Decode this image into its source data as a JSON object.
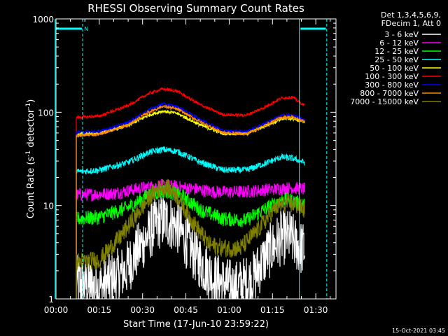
{
  "chart_data": {
    "type": "line",
    "title": "RHESSI Observing Summary Count Rates",
    "xlabel": "Start Time (17-Jun-10 23:59:22)",
    "ylabel_parts": [
      "Count Rate (s",
      "-1",
      " detector",
      "-1",
      ")"
    ],
    "yscale": "log",
    "ylim": [
      1,
      1000
    ],
    "xlim_min": [
      0,
      97
    ],
    "y_ticks": [
      {
        "v": 1,
        "label": "1"
      },
      {
        "v": 10,
        "label": "10"
      },
      {
        "v": 100,
        "label": "100"
      },
      {
        "v": 1000,
        "label": "1000"
      }
    ],
    "x_ticks": [
      {
        "v": 0,
        "label": "00:00"
      },
      {
        "v": 15,
        "label": "00:15"
      },
      {
        "v": 30,
        "label": "00:30"
      },
      {
        "v": 45,
        "label": "00:45"
      },
      {
        "v": 60,
        "label": "01:00"
      },
      {
        "v": 75,
        "label": "01:15"
      },
      {
        "v": 90,
        "label": "01:30"
      }
    ],
    "x_minor_step_min": 5,
    "legend_header": [
      "Det 1,3,4,5,6,9,",
      "FDecim 1, Att 0"
    ],
    "legend_position": "top-right, outside plot",
    "time_range_min": [
      7,
      86
    ],
    "series": [
      {
        "name": "3 - 6 keV",
        "color": "#ffffff",
        "profile": [
          [
            7,
            1.5
          ],
          [
            15,
            1.3
          ],
          [
            24,
            2
          ],
          [
            30,
            4
          ],
          [
            35,
            6.5
          ],
          [
            38,
            7
          ],
          [
            42,
            6
          ],
          [
            48,
            3
          ],
          [
            55,
            1.6
          ],
          [
            62,
            1.3
          ],
          [
            68,
            1.6
          ],
          [
            73,
            3
          ],
          [
            78,
            4.5
          ],
          [
            81,
            4.6
          ],
          [
            84,
            3.6
          ],
          [
            86,
            3.4
          ]
        ],
        "noise": 0.3
      },
      {
        "name": "6 - 12 keV",
        "color": "#ff00ff",
        "profile": [
          [
            7,
            13
          ],
          [
            20,
            13.5
          ],
          [
            30,
            15.5
          ],
          [
            37,
            16.5
          ],
          [
            45,
            15.5
          ],
          [
            55,
            14
          ],
          [
            65,
            14
          ],
          [
            75,
            15
          ],
          [
            82,
            15.5
          ],
          [
            86,
            15
          ]
        ],
        "noise": 0.07
      },
      {
        "name": "12 - 25 keV",
        "color": "#00ff00",
        "profile": [
          [
            7,
            7.2
          ],
          [
            15,
            7.5
          ],
          [
            25,
            9.5
          ],
          [
            32,
            13
          ],
          [
            38,
            14.5
          ],
          [
            44,
            12.5
          ],
          [
            50,
            9
          ],
          [
            58,
            7.2
          ],
          [
            66,
            7
          ],
          [
            72,
            9
          ],
          [
            78,
            11.5
          ],
          [
            81,
            11.5
          ],
          [
            86,
            10
          ]
        ],
        "noise": 0.08
      },
      {
        "name": "25 - 50 keV",
        "color": "#00ffff",
        "profile": [
          [
            7,
            23
          ],
          [
            15,
            24
          ],
          [
            25,
            29
          ],
          [
            32,
            37
          ],
          [
            37,
            40
          ],
          [
            42,
            38
          ],
          [
            50,
            29
          ],
          [
            58,
            24
          ],
          [
            66,
            24
          ],
          [
            72,
            28
          ],
          [
            78,
            33
          ],
          [
            82,
            32
          ],
          [
            86,
            29
          ]
        ],
        "noise": 0.035
      },
      {
        "name": "50 - 100 keV",
        "color": "#ffff00",
        "profile": [
          [
            7,
            58
          ],
          [
            15,
            60
          ],
          [
            25,
            72
          ],
          [
            32,
            93
          ],
          [
            37,
            103
          ],
          [
            42,
            97
          ],
          [
            50,
            73
          ],
          [
            58,
            59
          ],
          [
            66,
            59
          ],
          [
            72,
            70
          ],
          [
            78,
            85
          ],
          [
            82,
            85
          ],
          [
            86,
            80
          ]
        ],
        "noise": 0.018
      },
      {
        "name": "100 - 300 keV",
        "color": "#ff0000",
        "profile": [
          [
            7,
            88
          ],
          [
            15,
            91
          ],
          [
            25,
            118
          ],
          [
            32,
            158
          ],
          [
            37,
            178
          ],
          [
            42,
            168
          ],
          [
            50,
            120
          ],
          [
            58,
            94
          ],
          [
            66,
            93
          ],
          [
            72,
            112
          ],
          [
            78,
            142
          ],
          [
            82,
            145
          ],
          [
            86,
            118
          ]
        ],
        "noise": 0.016
      },
      {
        "name": "300 - 800 keV",
        "color": "#0000ff",
        "profile": [
          [
            7,
            61
          ],
          [
            15,
            62
          ],
          [
            25,
            78
          ],
          [
            32,
            106
          ],
          [
            37,
            123
          ],
          [
            42,
            115
          ],
          [
            50,
            84
          ],
          [
            58,
            63
          ],
          [
            66,
            62
          ],
          [
            72,
            75
          ],
          [
            78,
            92
          ],
          [
            82,
            93
          ],
          [
            86,
            82
          ]
        ],
        "noise": 0.016
      },
      {
        "name": "800 - 7000 keV",
        "color": "#ff8800",
        "profile": [
          [
            7,
            56
          ],
          [
            15,
            58
          ],
          [
            25,
            73
          ],
          [
            32,
            100
          ],
          [
            37,
            116
          ],
          [
            42,
            108
          ],
          [
            50,
            79
          ],
          [
            58,
            60
          ],
          [
            66,
            59
          ],
          [
            72,
            71
          ],
          [
            78,
            88
          ],
          [
            82,
            89
          ],
          [
            86,
            79
          ]
        ],
        "noise": 0.016
      },
      {
        "name": "7000 - 15000 keV",
        "color": "#808000",
        "profile": [
          [
            7,
            2.5
          ],
          [
            15,
            2.6
          ],
          [
            22,
            4.5
          ],
          [
            28,
            8
          ],
          [
            34,
            14
          ],
          [
            37,
            16
          ],
          [
            41,
            14
          ],
          [
            47,
            7
          ],
          [
            53,
            3.8
          ],
          [
            58,
            3.5
          ],
          [
            64,
            3.5
          ],
          [
            70,
            5.5
          ],
          [
            76,
            9.5
          ],
          [
            80,
            10.5
          ],
          [
            84,
            10
          ],
          [
            86,
            9
          ]
        ],
        "noise": 0.1
      }
    ],
    "vertical_markers": [
      {
        "x": -0.3,
        "color": "#00ffff",
        "dashed": false
      },
      {
        "x": 9.2,
        "color": "#00ffff",
        "dashed": true
      },
      {
        "x": 84.3,
        "color": "#00ffff",
        "dashed": false
      },
      {
        "x": 93.8,
        "color": "#00ffff",
        "dashed": true
      }
    ],
    "night_bars": [
      {
        "x1": 0,
        "x2": 9.0,
        "color": "#00ffff",
        "label": "N"
      },
      {
        "x1": 84.7,
        "x2": 93.5,
        "color": "#00ffff",
        "label": ""
      }
    ]
  },
  "timestamp": "15-Oct-2021 03:45"
}
